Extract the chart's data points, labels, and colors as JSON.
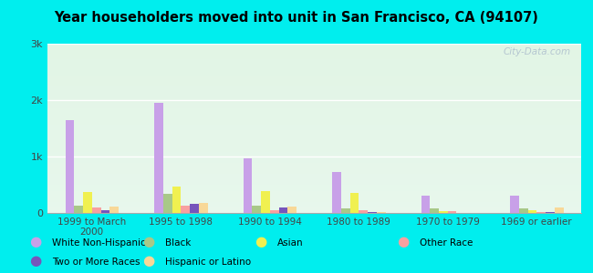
{
  "title": "Year householders moved into unit in San Francisco, CA (94107)",
  "categories": [
    "1999 to March\n2000",
    "1995 to 1998",
    "1990 to 1994",
    "1980 to 1989",
    "1970 to 1979",
    "1969 or earlier"
  ],
  "series_order": [
    "White Non-Hispanic",
    "Black",
    "Asian",
    "Other Race",
    "Two or More Races",
    "Hispanic or Latino"
  ],
  "series": {
    "White Non-Hispanic": [
      1650,
      1950,
      975,
      720,
      300,
      310
    ],
    "Black": [
      130,
      340,
      130,
      80,
      75,
      75
    ],
    "Asian": [
      370,
      460,
      390,
      350,
      35,
      55
    ],
    "Other Race": [
      100,
      130,
      55,
      45,
      25,
      15
    ],
    "Two or More Races": [
      50,
      165,
      95,
      18,
      8,
      18
    ],
    "Hispanic or Latino": [
      105,
      180,
      115,
      18,
      8,
      90
    ]
  },
  "colors": {
    "White Non-Hispanic": "#c8a0e8",
    "Black": "#a8c888",
    "Asian": "#f0f050",
    "Other Race": "#f8a0a0",
    "Two or More Races": "#7755bb",
    "Hispanic or Latino": "#f8d898"
  },
  "ylim": [
    0,
    3000
  ],
  "yticks": [
    0,
    1000,
    2000,
    3000
  ],
  "ytick_labels": [
    "0",
    "1k",
    "2k",
    "3k"
  ],
  "background_color": "#00eeee",
  "plot_bg_color": "#e0f5e8",
  "grid_color": "#c8e8d0",
  "watermark": "City-Data.com",
  "legend_row1": [
    "White Non-Hispanic",
    "Black",
    "Asian",
    "Other Race"
  ],
  "legend_row2": [
    "Two or More Races",
    "Hispanic or Latino"
  ]
}
